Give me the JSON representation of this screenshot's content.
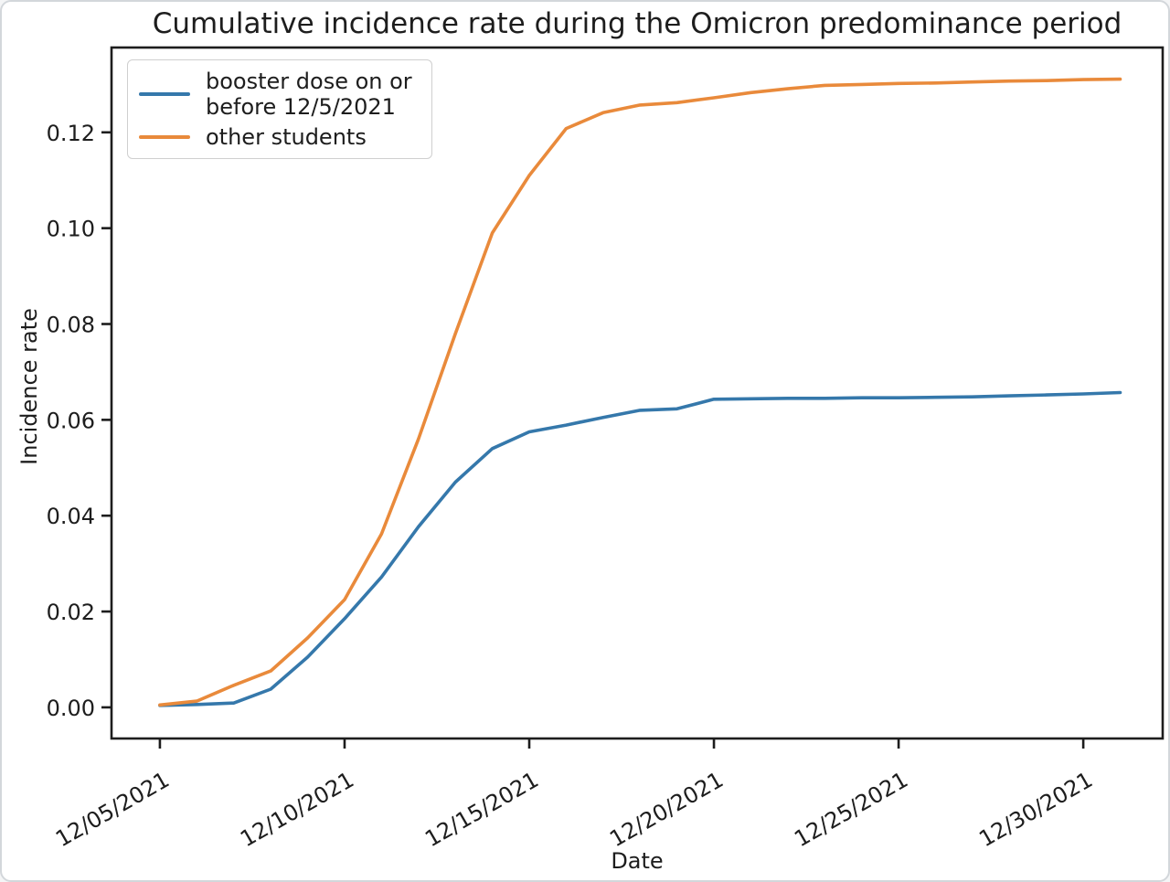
{
  "chart_data": {
    "type": "line",
    "title": "Cumulative incidence rate during the Omicron predominance period",
    "xlabel": "Date",
    "ylabel": "Incidence rate",
    "grid": false,
    "legend_position": "upper left",
    "xlim": [
      -1.31,
      27.15
    ],
    "ylim": [
      -0.0065,
      0.1377
    ],
    "y_ticks": [
      0.0,
      0.02,
      0.04,
      0.06,
      0.08,
      0.1,
      0.12
    ],
    "x_tick_days": [
      0,
      5,
      10,
      15,
      20,
      25
    ],
    "x_tick_labels": [
      "12/05/2021",
      "12/10/2021",
      "12/15/2021",
      "12/20/2021",
      "12/25/2021",
      "12/30/2021"
    ],
    "dates": [
      "12/05/2021",
      "12/06/2021",
      "12/07/2021",
      "12/08/2021",
      "12/09/2021",
      "12/10/2021",
      "12/11/2021",
      "12/12/2021",
      "12/13/2021",
      "12/14/2021",
      "12/15/2021",
      "12/16/2021",
      "12/17/2021",
      "12/18/2021",
      "12/19/2021",
      "12/20/2021",
      "12/21/2021",
      "12/22/2021",
      "12/23/2021",
      "12/24/2021",
      "12/25/2021",
      "12/26/2021",
      "12/27/2021",
      "12/28/2021",
      "12/29/2021",
      "12/30/2021",
      "12/31/2021"
    ],
    "series": [
      {
        "name": "booster dose on or before 12/5/2021",
        "legend_lines": [
          "booster dose on or",
          "before 12/5/2021"
        ],
        "color": "#3578ab",
        "values": [
          0.0004,
          0.0006,
          0.0009,
          0.0038,
          0.0105,
          0.0185,
          0.0272,
          0.0377,
          0.047,
          0.054,
          0.0575,
          0.0589,
          0.0605,
          0.062,
          0.0623,
          0.0643,
          0.0644,
          0.0645,
          0.0645,
          0.0646,
          0.0646,
          0.0647,
          0.0648,
          0.065,
          0.0652,
          0.0654,
          0.0657
        ]
      },
      {
        "name": "other students",
        "legend_lines": [
          "other students"
        ],
        "color": "#e98a3b",
        "values": [
          0.0005,
          0.0013,
          0.0046,
          0.0076,
          0.0145,
          0.0225,
          0.0362,
          0.056,
          0.078,
          0.099,
          0.111,
          0.1208,
          0.1241,
          0.1257,
          0.1262,
          0.1272,
          0.1283,
          0.1291,
          0.1298,
          0.13,
          0.1302,
          0.1303,
          0.1305,
          0.1307,
          0.1308,
          0.131,
          0.1311
        ]
      }
    ],
    "axis_color": "#1d1d1d"
  }
}
